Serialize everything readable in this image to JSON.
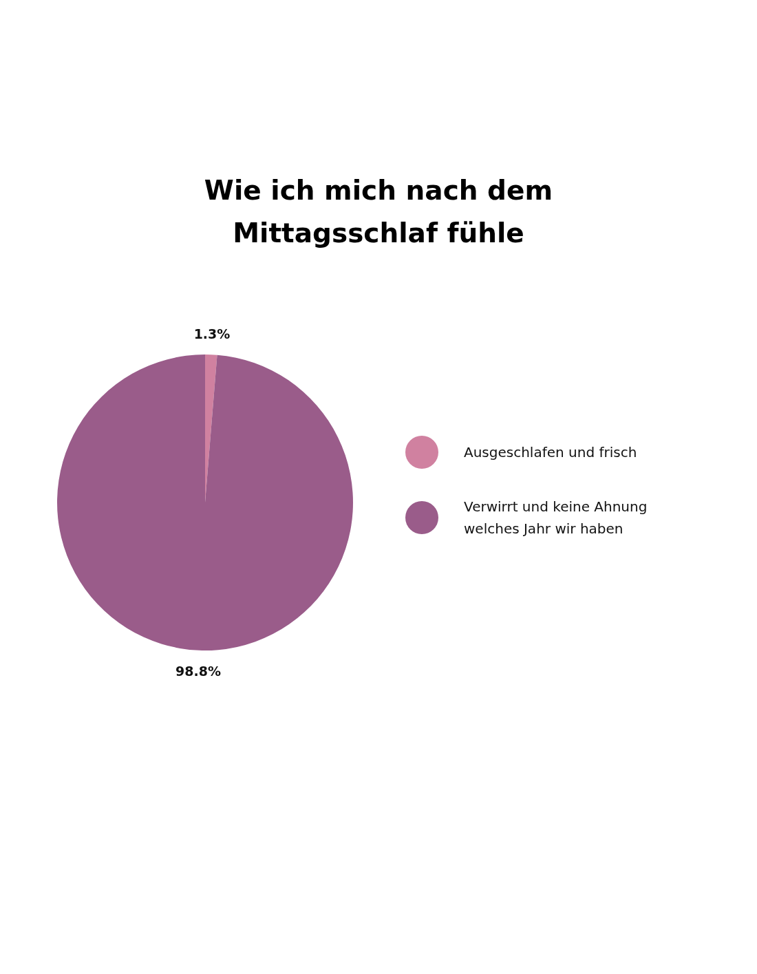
{
  "chart_data": {
    "type": "pie",
    "title": "Wie ich mich nach dem Mittagsschlaf fühle",
    "categories": [
      "Ausgeschlafen und frisch",
      "Verwirrt und keine Ahnung welches Jahr wir haben"
    ],
    "values": [
      1.3,
      98.8
    ],
    "colors": [
      "#d081a0",
      "#9a5c8a"
    ],
    "value_labels": [
      "1.3%",
      "98.8%"
    ],
    "legend": "right"
  }
}
